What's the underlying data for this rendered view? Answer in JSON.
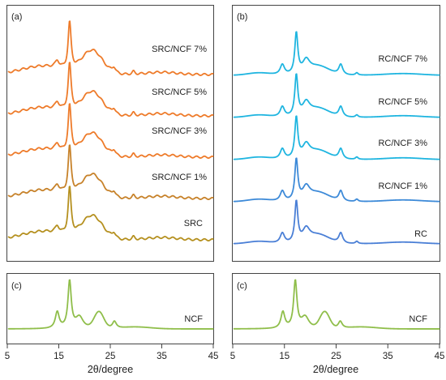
{
  "figure": {
    "xlabel": "2θ/degree",
    "xticks": [
      5,
      15,
      25,
      35,
      45
    ],
    "xlim": [
      5,
      45
    ]
  },
  "chart_data": [
    {
      "type": "line",
      "panel": "(a)",
      "xlabel": "2θ/degree",
      "xlim": [
        5,
        45
      ],
      "series": [
        {
          "name": "SRC/NCF 7%",
          "color": "#ee7b2a",
          "offset": 4,
          "profile": "src"
        },
        {
          "name": "SRC/NCF 5%",
          "color": "#ee7b2a",
          "offset": 3,
          "profile": "src"
        },
        {
          "name": "SRC/NCF 3%",
          "color": "#ee7b2a",
          "offset": 2,
          "profile": "src"
        },
        {
          "name": "SRC/NCF 1%",
          "color": "#c7822a",
          "offset": 1,
          "profile": "src"
        },
        {
          "name": "SRC",
          "color": "#b5901f",
          "offset": 0,
          "profile": "src"
        }
      ]
    },
    {
      "type": "line",
      "panel": "(b)",
      "xlabel": "2θ/degree",
      "xlim": [
        5,
        45
      ],
      "series": [
        {
          "name": "RC/NCF 7%",
          "color": "#1fb5e0",
          "offset": 4,
          "profile": "rc"
        },
        {
          "name": "RC/NCF 5%",
          "color": "#1fb5e0",
          "offset": 3,
          "profile": "rc"
        },
        {
          "name": "RC/NCF 3%",
          "color": "#1fb5e0",
          "offset": 2,
          "profile": "rc"
        },
        {
          "name": "RC/NCF 1%",
          "color": "#3d8ad8",
          "offset": 1,
          "profile": "rc"
        },
        {
          "name": "RC",
          "color": "#4a7fd6",
          "offset": 0,
          "profile": "rc"
        }
      ]
    },
    {
      "type": "line",
      "panel": "(c)",
      "xlabel": "2θ/degree",
      "xlim": [
        5,
        45
      ],
      "series": [
        {
          "name": "NCF",
          "color": "#8fbe4a",
          "offset": 0,
          "profile": "ncf"
        }
      ]
    },
    {
      "type": "line",
      "panel": "(c)",
      "xlabel": "2θ/degree",
      "xlim": [
        5,
        45
      ],
      "series": [
        {
          "name": "NCF",
          "color": "#8fbe4a",
          "offset": 0,
          "profile": "ncf"
        }
      ]
    }
  ]
}
